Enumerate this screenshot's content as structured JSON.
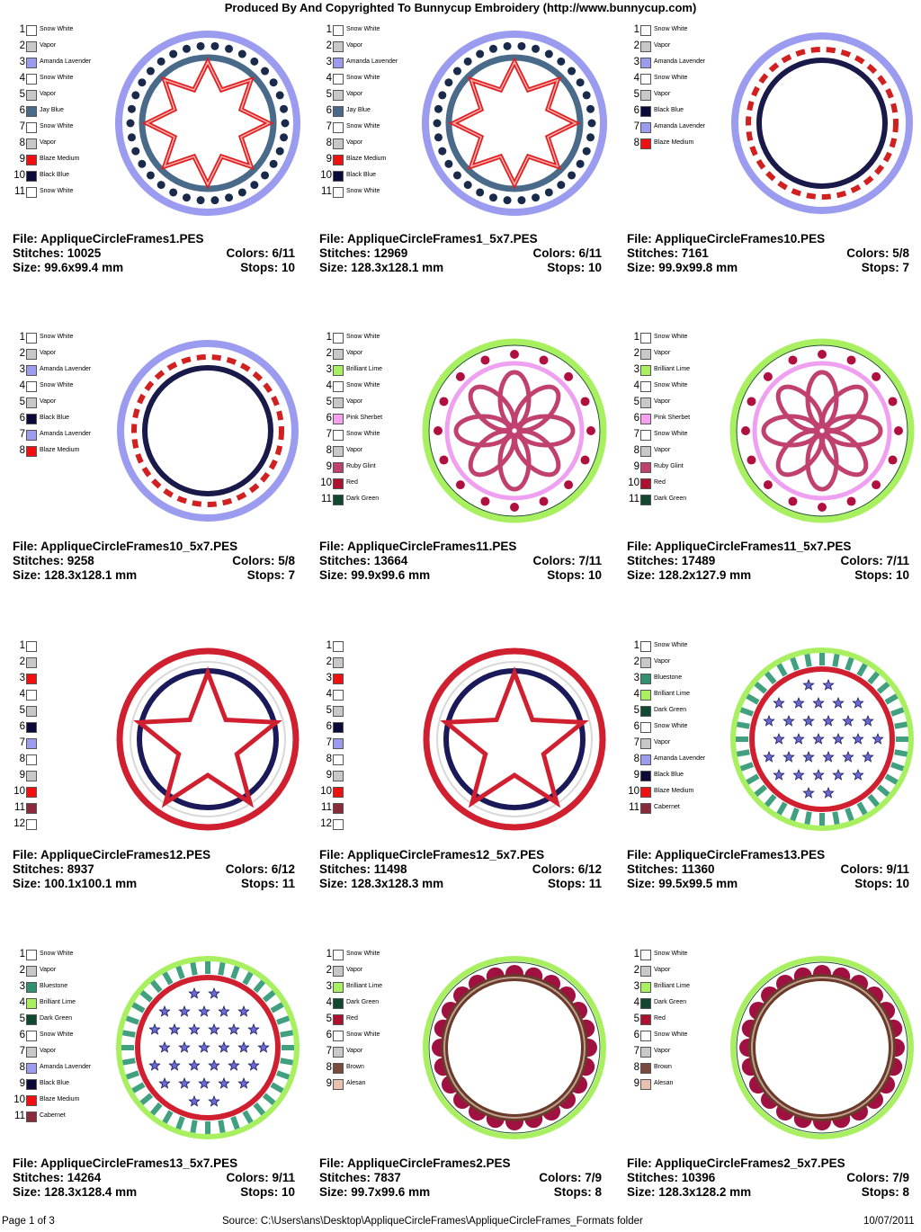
{
  "header": {
    "title": "Produced By And Copyrighted To Bunnycup Embroidery (http://www.bunnycup.com)"
  },
  "colors": {
    "Snow White": "#ffffff",
    "Vapor": "#c8c8c8",
    "Amanda Lavender": "#9b9bf0",
    "Jay Blue": "#4a6a8a",
    "Blaze Medium": "#f01010",
    "Black Blue": "#0a0a3a",
    "Brilliant Lime": "#a8f060",
    "Pink Sherbet": "#f8a0f0",
    "Ruby Glint": "#c04070",
    "Red": "#b01030",
    "Dark Green": "#104830",
    "Bluestone": "#309070",
    "Cabernet": "#8a2a3a",
    "Brown": "#7a4a3a",
    "Alesan": "#e8c0b0"
  },
  "designs": [
    {
      "file_label": "File: AppliqueCircleFrames1.PES",
      "stitches_label": "Stitches: 10025",
      "colors_label": "Colors: 6/11",
      "size_label": "Size: 99.6x99.4 mm",
      "stops_label": "Stops: 10",
      "style": "star8",
      "swatches": [
        {
          "num": "1",
          "name": "Snow White",
          "color": "#ffffff"
        },
        {
          "num": "2",
          "name": "Vapor",
          "color": "#c8c8c8"
        },
        {
          "num": "3",
          "name": "Amanda Lavender",
          "color": "#9b9bf0"
        },
        {
          "num": "4",
          "name": "Snow White",
          "color": "#ffffff"
        },
        {
          "num": "5",
          "name": "Vapor",
          "color": "#c8c8c8"
        },
        {
          "num": "6",
          "name": "Jay Blue",
          "color": "#4a6a8a"
        },
        {
          "num": "7",
          "name": "Snow White",
          "color": "#ffffff"
        },
        {
          "num": "8",
          "name": "Vapor",
          "color": "#c8c8c8"
        },
        {
          "num": "9",
          "name": "Blaze Medium",
          "color": "#f01010"
        },
        {
          "num": "10",
          "name": "Black Blue",
          "color": "#0a0a3a"
        },
        {
          "num": "11",
          "name": "Snow White",
          "color": "#ffffff"
        }
      ]
    },
    {
      "file_label": "File: AppliqueCircleFrames1_5x7.PES",
      "stitches_label": "Stitches: 12969",
      "colors_label": "Colors: 6/11",
      "size_label": "Size: 128.3x128.1 mm",
      "stops_label": "Stops: 10",
      "style": "star8",
      "swatches": [
        {
          "num": "1",
          "name": "Snow White",
          "color": "#ffffff"
        },
        {
          "num": "2",
          "name": "Vapor",
          "color": "#c8c8c8"
        },
        {
          "num": "3",
          "name": "Amanda Lavender",
          "color": "#9b9bf0"
        },
        {
          "num": "4",
          "name": "Snow White",
          "color": "#ffffff"
        },
        {
          "num": "5",
          "name": "Vapor",
          "color": "#c8c8c8"
        },
        {
          "num": "6",
          "name": "Jay Blue",
          "color": "#4a6a8a"
        },
        {
          "num": "7",
          "name": "Snow White",
          "color": "#ffffff"
        },
        {
          "num": "8",
          "name": "Vapor",
          "color": "#c8c8c8"
        },
        {
          "num": "9",
          "name": "Blaze Medium",
          "color": "#f01010"
        },
        {
          "num": "10",
          "name": "Black Blue",
          "color": "#0a0a3a"
        },
        {
          "num": "11",
          "name": "Snow White",
          "color": "#ffffff"
        }
      ]
    },
    {
      "file_label": "File: AppliqueCircleFrames10.PES",
      "stitches_label": "Stitches: 7161",
      "colors_label": "Colors: 5/8",
      "size_label": "Size: 99.9x99.8 mm",
      "stops_label": "Stops: 7",
      "style": "dashring",
      "swatches": [
        {
          "num": "1",
          "name": "Snow White",
          "color": "#ffffff"
        },
        {
          "num": "2",
          "name": "Vapor",
          "color": "#c8c8c8"
        },
        {
          "num": "3",
          "name": "Amanda Lavender",
          "color": "#9b9bf0"
        },
        {
          "num": "4",
          "name": "Snow White",
          "color": "#ffffff"
        },
        {
          "num": "5",
          "name": "Vapor",
          "color": "#c8c8c8"
        },
        {
          "num": "6",
          "name": "Black Blue",
          "color": "#0a0a3a"
        },
        {
          "num": "7",
          "name": "Amanda Lavender",
          "color": "#9b9bf0"
        },
        {
          "num": "8",
          "name": "Blaze Medium",
          "color": "#f01010"
        }
      ]
    },
    {
      "file_label": "File: AppliqueCircleFrames10_5x7.PES",
      "stitches_label": "Stitches: 9258",
      "colors_label": "Colors: 5/8",
      "size_label": "Size: 128.3x128.1 mm",
      "stops_label": "Stops: 7",
      "style": "dashring",
      "swatches": [
        {
          "num": "1",
          "name": "Snow White",
          "color": "#ffffff"
        },
        {
          "num": "2",
          "name": "Vapor",
          "color": "#c8c8c8"
        },
        {
          "num": "3",
          "name": "Amanda Lavender",
          "color": "#9b9bf0"
        },
        {
          "num": "4",
          "name": "Snow White",
          "color": "#ffffff"
        },
        {
          "num": "5",
          "name": "Vapor",
          "color": "#c8c8c8"
        },
        {
          "num": "6",
          "name": "Black Blue",
          "color": "#0a0a3a"
        },
        {
          "num": "7",
          "name": "Amanda Lavender",
          "color": "#9b9bf0"
        },
        {
          "num": "8",
          "name": "Blaze Medium",
          "color": "#f01010"
        }
      ]
    },
    {
      "file_label": "File: AppliqueCircleFrames11.PES",
      "stitches_label": "Stitches: 13664",
      "colors_label": "Colors: 7/11",
      "size_label": "Size: 99.9x99.6 mm",
      "stops_label": "Stops: 10",
      "style": "flower",
      "swatches": [
        {
          "num": "1",
          "name": "Snow White",
          "color": "#ffffff"
        },
        {
          "num": "2",
          "name": "Vapor",
          "color": "#c8c8c8"
        },
        {
          "num": "3",
          "name": "Brilliant Lime",
          "color": "#a8f060"
        },
        {
          "num": "4",
          "name": "Snow White",
          "color": "#ffffff"
        },
        {
          "num": "5",
          "name": "Vapor",
          "color": "#c8c8c8"
        },
        {
          "num": "6",
          "name": "Pink Sherbet",
          "color": "#f8a0f0"
        },
        {
          "num": "7",
          "name": "Snow White",
          "color": "#ffffff"
        },
        {
          "num": "8",
          "name": "Vapor",
          "color": "#c8c8c8"
        },
        {
          "num": "9",
          "name": "Ruby Glint",
          "color": "#c04070"
        },
        {
          "num": "10",
          "name": "Red",
          "color": "#b01030"
        },
        {
          "num": "11",
          "name": "Dark Green",
          "color": "#104830"
        }
      ]
    },
    {
      "file_label": "File: AppliqueCircleFrames11_5x7.PES",
      "stitches_label": "Stitches: 17489",
      "colors_label": "Colors: 7/11",
      "size_label": "Size: 128.2x127.9 mm",
      "stops_label": "Stops: 10",
      "style": "flower",
      "swatches": [
        {
          "num": "1",
          "name": "Snow White",
          "color": "#ffffff"
        },
        {
          "num": "2",
          "name": "Vapor",
          "color": "#c8c8c8"
        },
        {
          "num": "3",
          "name": "Brilliant Lime",
          "color": "#a8f060"
        },
        {
          "num": "4",
          "name": "Snow White",
          "color": "#ffffff"
        },
        {
          "num": "5",
          "name": "Vapor",
          "color": "#c8c8c8"
        },
        {
          "num": "6",
          "name": "Pink Sherbet",
          "color": "#f8a0f0"
        },
        {
          "num": "7",
          "name": "Snow White",
          "color": "#ffffff"
        },
        {
          "num": "8",
          "name": "Vapor",
          "color": "#c8c8c8"
        },
        {
          "num": "9",
          "name": "Ruby Glint",
          "color": "#c04070"
        },
        {
          "num": "10",
          "name": "Red",
          "color": "#b01030"
        },
        {
          "num": "11",
          "name": "Dark Green",
          "color": "#104830"
        }
      ]
    },
    {
      "file_label": "File: AppliqueCircleFrames12.PES",
      "stitches_label": "Stitches: 8937",
      "colors_label": "Colors: 6/12",
      "size_label": "Size: 100.1x100.1 mm",
      "stops_label": "Stops: 11",
      "style": "star5",
      "swatches": [
        {
          "num": "1",
          "name": "",
          "color": "#ffffff"
        },
        {
          "num": "2",
          "name": "",
          "color": "#c8c8c8"
        },
        {
          "num": "3",
          "name": "",
          "color": "#f01010"
        },
        {
          "num": "4",
          "name": "",
          "color": "#ffffff"
        },
        {
          "num": "5",
          "name": "",
          "color": "#c8c8c8"
        },
        {
          "num": "6",
          "name": "",
          "color": "#0a0a3a"
        },
        {
          "num": "7",
          "name": "",
          "color": "#9b9bf0"
        },
        {
          "num": "8",
          "name": "",
          "color": "#ffffff"
        },
        {
          "num": "9",
          "name": "",
          "color": "#c8c8c8"
        },
        {
          "num": "10",
          "name": "",
          "color": "#f01010"
        },
        {
          "num": "11",
          "name": "",
          "color": "#8a2a3a"
        },
        {
          "num": "12",
          "name": "",
          "color": "#ffffff"
        }
      ]
    },
    {
      "file_label": "File: AppliqueCircleFrames12_5x7.PES",
      "stitches_label": "Stitches: 11498",
      "colors_label": "Colors: 6/12",
      "size_label": "Size: 128.3x128.3 mm",
      "stops_label": "Stops: 11",
      "style": "star5",
      "swatches": [
        {
          "num": "1",
          "name": "",
          "color": "#ffffff"
        },
        {
          "num": "2",
          "name": "",
          "color": "#c8c8c8"
        },
        {
          "num": "3",
          "name": "",
          "color": "#f01010"
        },
        {
          "num": "4",
          "name": "",
          "color": "#ffffff"
        },
        {
          "num": "5",
          "name": "",
          "color": "#c8c8c8"
        },
        {
          "num": "6",
          "name": "",
          "color": "#0a0a3a"
        },
        {
          "num": "7",
          "name": "",
          "color": "#9b9bf0"
        },
        {
          "num": "8",
          "name": "",
          "color": "#ffffff"
        },
        {
          "num": "9",
          "name": "",
          "color": "#c8c8c8"
        },
        {
          "num": "10",
          "name": "",
          "color": "#f01010"
        },
        {
          "num": "11",
          "name": "",
          "color": "#8a2a3a"
        },
        {
          "num": "12",
          "name": "",
          "color": "#ffffff"
        }
      ]
    },
    {
      "file_label": "File: AppliqueCircleFrames13.PES",
      "stitches_label": "Stitches: 11360",
      "colors_label": "Colors: 9/11",
      "size_label": "Size: 99.5x99.5 mm",
      "stops_label": "Stops: 10",
      "style": "stars",
      "swatches": [
        {
          "num": "1",
          "name": "Snow White",
          "color": "#ffffff"
        },
        {
          "num": "2",
          "name": "Vapor",
          "color": "#c8c8c8"
        },
        {
          "num": "3",
          "name": "Bluestone",
          "color": "#309070"
        },
        {
          "num": "4",
          "name": "Brilliant Lime",
          "color": "#a8f060"
        },
        {
          "num": "5",
          "name": "Dark Green",
          "color": "#104830"
        },
        {
          "num": "6",
          "name": "Snow White",
          "color": "#ffffff"
        },
        {
          "num": "7",
          "name": "Vapor",
          "color": "#c8c8c8"
        },
        {
          "num": "8",
          "name": "Amanda Lavender",
          "color": "#9b9bf0"
        },
        {
          "num": "9",
          "name": "Black Blue",
          "color": "#0a0a3a"
        },
        {
          "num": "10",
          "name": "Blaze Medium",
          "color": "#f01010"
        },
        {
          "num": "11",
          "name": "Cabernet",
          "color": "#8a2a3a"
        }
      ]
    },
    {
      "file_label": "File: AppliqueCircleFrames13_5x7.PES",
      "stitches_label": "Stitches: 14264",
      "colors_label": "Colors: 9/11",
      "size_label": "Size: 128.3x128.4 mm",
      "stops_label": "Stops: 10",
      "style": "stars",
      "swatches": [
        {
          "num": "1",
          "name": "Snow White",
          "color": "#ffffff"
        },
        {
          "num": "2",
          "name": "Vapor",
          "color": "#c8c8c8"
        },
        {
          "num": "3",
          "name": "Bluestone",
          "color": "#309070"
        },
        {
          "num": "4",
          "name": "Brilliant Lime",
          "color": "#a8f060"
        },
        {
          "num": "5",
          "name": "Dark Green",
          "color": "#104830"
        },
        {
          "num": "6",
          "name": "Snow White",
          "color": "#ffffff"
        },
        {
          "num": "7",
          "name": "Vapor",
          "color": "#c8c8c8"
        },
        {
          "num": "8",
          "name": "Amanda Lavender",
          "color": "#9b9bf0"
        },
        {
          "num": "9",
          "name": "Black Blue",
          "color": "#0a0a3a"
        },
        {
          "num": "10",
          "name": "Blaze Medium",
          "color": "#f01010"
        },
        {
          "num": "11",
          "name": "Cabernet",
          "color": "#8a2a3a"
        }
      ]
    },
    {
      "file_label": "File: AppliqueCircleFrames2.PES",
      "stitches_label": "Stitches: 7837",
      "colors_label": "Colors: 7/9",
      "size_label": "Size: 99.7x99.6 mm",
      "stops_label": "Stops: 8",
      "style": "scallop",
      "swatches": [
        {
          "num": "1",
          "name": "Snow White",
          "color": "#ffffff"
        },
        {
          "num": "2",
          "name": "Vapor",
          "color": "#c8c8c8"
        },
        {
          "num": "3",
          "name": "Brilliant Lime",
          "color": "#a8f060"
        },
        {
          "num": "4",
          "name": "Dark Green",
          "color": "#104830"
        },
        {
          "num": "5",
          "name": "Red",
          "color": "#b01030"
        },
        {
          "num": "6",
          "name": "Snow White",
          "color": "#ffffff"
        },
        {
          "num": "7",
          "name": "Vapor",
          "color": "#c8c8c8"
        },
        {
          "num": "8",
          "name": "Brown",
          "color": "#7a4a3a"
        },
        {
          "num": "9",
          "name": "Alesan",
          "color": "#e8c0b0"
        }
      ]
    },
    {
      "file_label": "File: AppliqueCircleFrames2_5x7.PES",
      "stitches_label": "Stitches: 10396",
      "colors_label": "Colors: 7/9",
      "size_label": "Size: 128.3x128.2 mm",
      "stops_label": "Stops: 8",
      "style": "scallop",
      "swatches": [
        {
          "num": "1",
          "name": "Snow White",
          "color": "#ffffff"
        },
        {
          "num": "2",
          "name": "Vapor",
          "color": "#c8c8c8"
        },
        {
          "num": "3",
          "name": "Brilliant Lime",
          "color": "#a8f060"
        },
        {
          "num": "4",
          "name": "Dark Green",
          "color": "#104830"
        },
        {
          "num": "5",
          "name": "Red",
          "color": "#b01030"
        },
        {
          "num": "6",
          "name": "Snow White",
          "color": "#ffffff"
        },
        {
          "num": "7",
          "name": "Vapor",
          "color": "#c8c8c8"
        },
        {
          "num": "8",
          "name": "Brown",
          "color": "#7a4a3a"
        },
        {
          "num": "9",
          "name": "Alesan",
          "color": "#e8c0b0"
        }
      ]
    }
  ],
  "footer": {
    "page_label": "Page 1 of 3",
    "source_label": "Source: C:\\Users\\ans\\Desktop\\AppliqueCircleFrames\\AppliqueCircleFrames_Formats folder",
    "date_label": "10/07/2011"
  }
}
